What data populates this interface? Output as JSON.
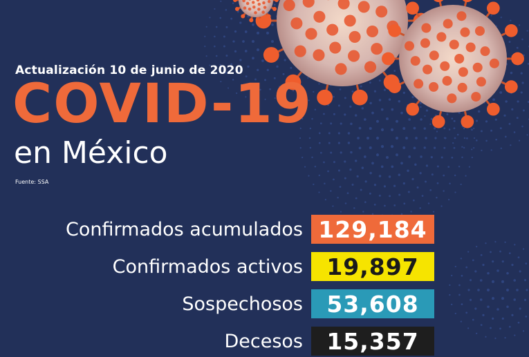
{
  "header": {
    "update_text": "Actualización 10 de junio de 2020",
    "title": "COVID-19",
    "subtitle": "en México",
    "source": "Fuente: SSA"
  },
  "stats": [
    {
      "label": "Confirmados acumulados",
      "value": "129,184",
      "bg": "#ef6a3a",
      "fg": "#ffffff"
    },
    {
      "label": "Confirmados activos",
      "value": "19,897",
      "bg": "#f6e400",
      "fg": "#1a1a1a"
    },
    {
      "label": "Sospechosos",
      "value": "53,608",
      "bg": "#2a9ab7",
      "fg": "#ffffff"
    },
    {
      "label": "Decesos",
      "value": "15,357",
      "bg": "#1e1e1e",
      "fg": "#ffffff"
    }
  ],
  "colors": {
    "background": "#223059",
    "accent": "#ef6a3a",
    "virus_body": "#d9c7c7",
    "virus_spike": "#e8532a"
  },
  "icons": [
    "virus-illustration"
  ]
}
